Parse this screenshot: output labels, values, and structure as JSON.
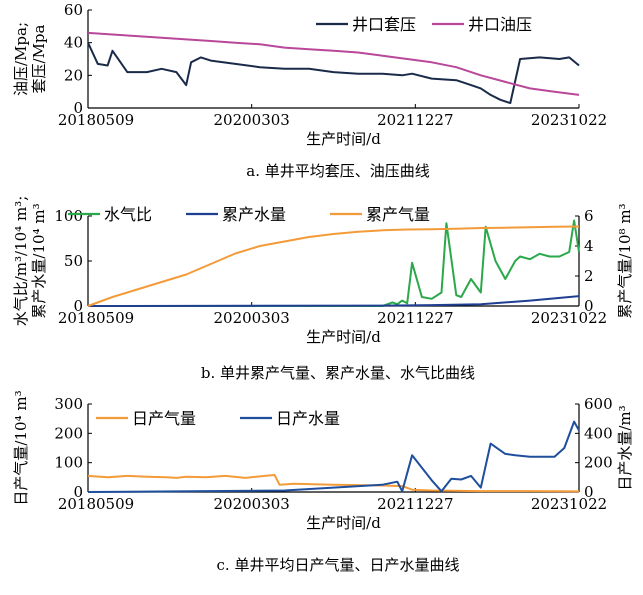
{
  "chart_data": [
    {
      "type": "line",
      "caption": "a. 单井平均套压、油压曲线",
      "xlabel": "生产时间/d",
      "ylabel_lines": [
        "油压/Mpa;",
        "套压/Mpa"
      ],
      "x_ticks": [
        "20180509",
        "20200303",
        "20211227",
        "20231022"
      ],
      "ylim": [
        0,
        60
      ],
      "y_ticks": [
        "0",
        "20",
        "40",
        "60"
      ],
      "legend_position": "top-right",
      "grid": false,
      "series": [
        {
          "name": "井口套压",
          "color": "#1a2b4a",
          "t": [
            0,
            0.02,
            0.04,
            0.05,
            0.08,
            0.12,
            0.15,
            0.18,
            0.2,
            0.21,
            0.23,
            0.25,
            0.3,
            0.35,
            0.4,
            0.45,
            0.5,
            0.55,
            0.6,
            0.64,
            0.66,
            0.7,
            0.75,
            0.78,
            0.8,
            0.82,
            0.84,
            0.86,
            0.88,
            0.92,
            0.96,
            0.98,
            1.0
          ],
          "values": [
            40,
            27,
            26,
            35,
            22,
            22,
            24,
            22,
            14,
            28,
            31,
            29,
            27,
            25,
            24,
            24,
            22,
            21,
            21,
            20,
            21,
            18,
            17,
            14,
            12,
            8,
            5,
            3,
            30,
            31,
            30,
            31,
            26
          ]
        },
        {
          "name": "井口油压",
          "color": "#b9479a",
          "t": [
            0,
            0.05,
            0.1,
            0.15,
            0.2,
            0.25,
            0.3,
            0.35,
            0.4,
            0.45,
            0.5,
            0.55,
            0.6,
            0.65,
            0.7,
            0.75,
            0.8,
            0.85,
            0.9,
            0.95,
            1.0
          ],
          "values": [
            46,
            45,
            44,
            43,
            42,
            41,
            40,
            39,
            37,
            36,
            35,
            34,
            32,
            30,
            28,
            25,
            20,
            16,
            12,
            10,
            8
          ]
        }
      ]
    },
    {
      "type": "line",
      "caption": "b. 单井累产气量、累产水量、水气比曲线",
      "xlabel": "生产时间/d",
      "ylabel_lines": [
        "水气比/m³/10⁴ m³;",
        "累产水量/10⁴ m³"
      ],
      "ylabel_right": "累产气量/10⁸ m³",
      "x_ticks": [
        "20180509",
        "20200303",
        "20211227",
        "20231022"
      ],
      "ylim": [
        0,
        100
      ],
      "y_ticks": [
        "0",
        "50",
        "100"
      ],
      "ylim_right": [
        0,
        6
      ],
      "y_ticks_right": [
        "0",
        "2",
        "4",
        "6"
      ],
      "legend_position": "top",
      "grid": false,
      "series": [
        {
          "name": "水气比",
          "color": "#2aa84a",
          "axis": "left",
          "t": [
            0,
            0.6,
            0.62,
            0.63,
            0.64,
            0.65,
            0.66,
            0.68,
            0.7,
            0.72,
            0.73,
            0.75,
            0.76,
            0.78,
            0.8,
            0.81,
            0.83,
            0.85,
            0.87,
            0.88,
            0.9,
            0.92,
            0.94,
            0.96,
            0.98,
            0.99,
            1.0
          ],
          "values": [
            0,
            0,
            4,
            2,
            6,
            3,
            48,
            10,
            8,
            15,
            92,
            12,
            10,
            30,
            15,
            88,
            50,
            30,
            50,
            55,
            52,
            58,
            55,
            55,
            60,
            95,
            60
          ]
        },
        {
          "name": "累产水量",
          "color": "#1f3f93",
          "axis": "left",
          "t": [
            0,
            0.6,
            0.7,
            0.8,
            0.9,
            1.0
          ],
          "values": [
            0,
            0.5,
            1,
            2,
            6,
            11
          ]
        },
        {
          "name": "累产气量",
          "color": "#f39b39",
          "axis": "right",
          "t": [
            0,
            0.05,
            0.1,
            0.15,
            0.2,
            0.25,
            0.3,
            0.35,
            0.4,
            0.45,
            0.5,
            0.55,
            0.6,
            0.65,
            0.7,
            0.75,
            0.8,
            0.85,
            0.9,
            0.95,
            1.0
          ],
          "values": [
            0,
            0.6,
            1.1,
            1.6,
            2.1,
            2.8,
            3.5,
            4.0,
            4.3,
            4.6,
            4.8,
            4.95,
            5.05,
            5.1,
            5.12,
            5.15,
            5.2,
            5.22,
            5.25,
            5.28,
            5.3
          ]
        }
      ]
    },
    {
      "type": "line",
      "caption": "c. 单井平均日产气量、日产水量曲线",
      "xlabel": "生产时间/d",
      "ylabel_lines": [
        "日产气量/10⁴ m³"
      ],
      "ylabel_right": "日产水量/m³",
      "x_ticks": [
        "20180509",
        "20200303",
        "20211227",
        "20231022"
      ],
      "ylim": [
        0,
        300
      ],
      "y_ticks": [
        "0",
        "100",
        "200",
        "300"
      ],
      "ylim_right": [
        0,
        600
      ],
      "y_ticks_right": [
        "0",
        "200",
        "400",
        "600"
      ],
      "legend_position": "top",
      "grid": false,
      "series": [
        {
          "name": "日产气量",
          "color": "#f39b39",
          "axis": "left",
          "t": [
            0,
            0.04,
            0.08,
            0.12,
            0.16,
            0.18,
            0.2,
            0.24,
            0.28,
            0.32,
            0.36,
            0.38,
            0.39,
            0.42,
            0.5,
            0.6,
            0.64,
            0.66,
            0.7,
            0.8,
            0.9,
            1.0
          ],
          "values": [
            55,
            50,
            55,
            52,
            50,
            48,
            52,
            50,
            55,
            48,
            55,
            58,
            25,
            28,
            25,
            22,
            20,
            8,
            5,
            3,
            3,
            2
          ]
        },
        {
          "name": "日产水量",
          "color": "#1f4e9c",
          "axis": "right",
          "t": [
            0,
            0.4,
            0.5,
            0.6,
            0.63,
            0.64,
            0.66,
            0.7,
            0.72,
            0.74,
            0.76,
            0.78,
            0.8,
            0.82,
            0.85,
            0.87,
            0.9,
            0.95,
            0.97,
            0.99,
            1.0
          ],
          "values": [
            0,
            10,
            30,
            50,
            70,
            5,
            250,
            80,
            5,
            90,
            85,
            110,
            30,
            330,
            260,
            250,
            240,
            240,
            300,
            480,
            420
          ]
        }
      ]
    }
  ]
}
